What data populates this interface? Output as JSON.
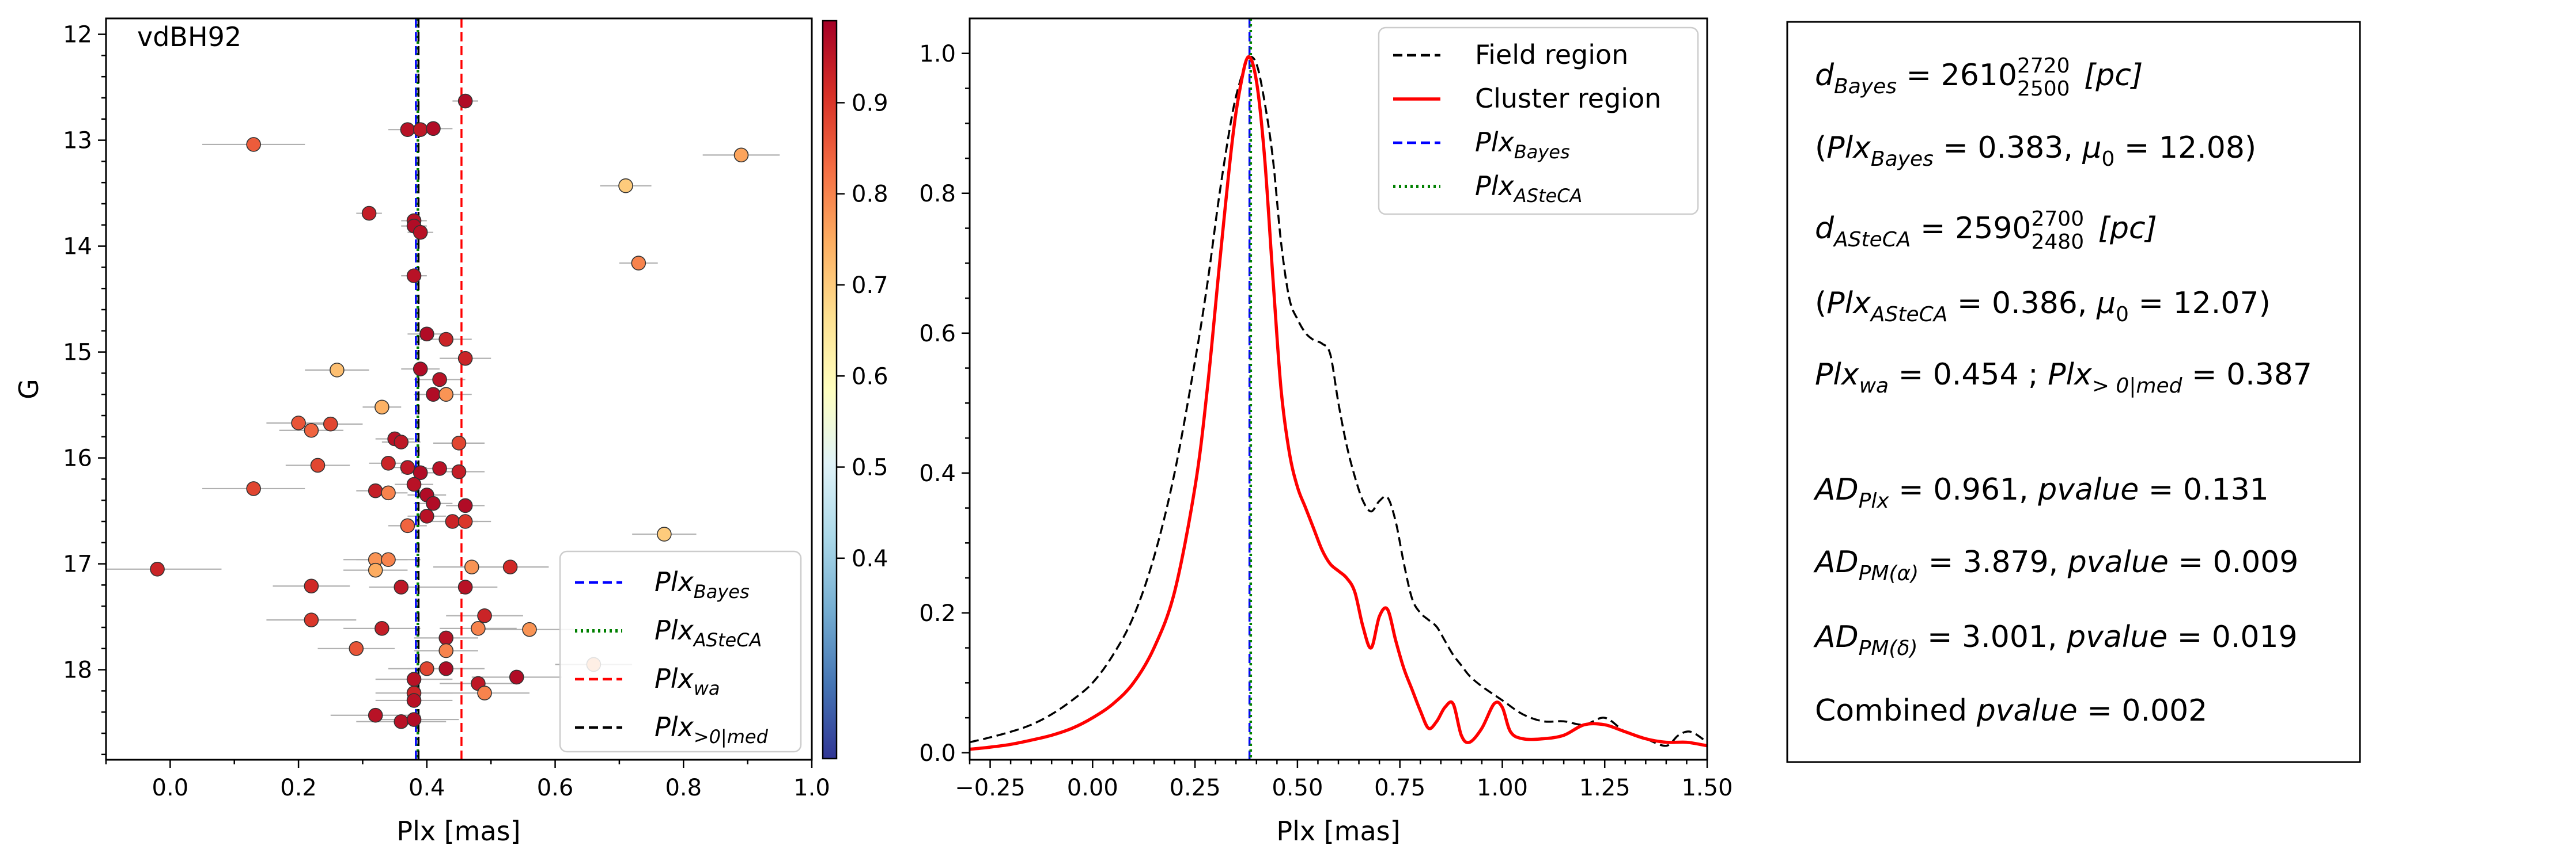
{
  "chart_data": [
    {
      "type": "scatter",
      "annotation": "vdBH92",
      "xlabel": "Plx [mas]",
      "ylabel": "G",
      "xlim": [
        -0.1,
        1.0
      ],
      "ylim": [
        18.85,
        11.85
      ],
      "y_inverted": true,
      "xticks": [
        "0.0",
        "0.2",
        "0.4",
        "0.6",
        "0.8",
        "1.0"
      ],
      "yticks": [
        "12",
        "13",
        "14",
        "15",
        "16",
        "17",
        "18"
      ],
      "colorbar": {
        "range": [
          0.18,
          0.99
        ],
        "ticks": [
          "0.4",
          "0.5",
          "0.6",
          "0.7",
          "0.8",
          "0.9"
        ],
        "colormap": "RdYlBu_r"
      },
      "vlines": [
        {
          "name": "Plx_Bayes",
          "x": 0.383,
          "color": "#0000ff",
          "style": "dashed"
        },
        {
          "name": "Plx_ASteCA",
          "x": 0.386,
          "color": "#008000",
          "style": "dotted"
        },
        {
          "name": "Plx_wa",
          "x": 0.454,
          "color": "#ff0000",
          "style": "dashed"
        },
        {
          "name": "Plx_>0|med",
          "x": 0.387,
          "color": "#000000",
          "style": "dashed"
        }
      ],
      "legend": {
        "location": "lower-right",
        "entries": [
          {
            "base": "Plx",
            "sub": "Bayes",
            "color": "#0000ff",
            "style": "dashed"
          },
          {
            "base": "Plx",
            "sub": "ASteCA",
            "color": "#008000",
            "style": "dotted"
          },
          {
            "base": "Plx",
            "sub": "wa",
            "color": "#ff0000",
            "style": "dashed"
          },
          {
            "base": "Plx",
            "sub": ">0|med",
            "color": "#000000",
            "style": "dashed"
          }
        ]
      },
      "points": [
        {
          "x": 0.46,
          "y": 12.63,
          "xerr": 0.02,
          "p": 0.97
        },
        {
          "x": 0.37,
          "y": 12.9,
          "xerr": 0.03,
          "p": 0.96
        },
        {
          "x": 0.39,
          "y": 12.9,
          "xerr": 0.03,
          "p": 0.95
        },
        {
          "x": 0.41,
          "y": 12.89,
          "xerr": 0.03,
          "p": 0.97
        },
        {
          "x": 0.13,
          "y": 13.04,
          "xerr": 0.08,
          "p": 0.85
        },
        {
          "x": 0.89,
          "y": 13.14,
          "xerr": 0.06,
          "p": 0.76
        },
        {
          "x": 0.71,
          "y": 13.43,
          "xerr": 0.04,
          "p": 0.7
        },
        {
          "x": 0.31,
          "y": 13.69,
          "xerr": 0.02,
          "p": 0.94
        },
        {
          "x": 0.38,
          "y": 13.76,
          "xerr": 0.02,
          "p": 0.96
        },
        {
          "x": 0.38,
          "y": 13.81,
          "xerr": 0.02,
          "p": 0.97
        },
        {
          "x": 0.39,
          "y": 13.87,
          "xerr": 0.02,
          "p": 0.96
        },
        {
          "x": 0.73,
          "y": 14.16,
          "xerr": 0.03,
          "p": 0.8
        },
        {
          "x": 0.38,
          "y": 14.28,
          "xerr": 0.02,
          "p": 0.96
        },
        {
          "x": 0.4,
          "y": 14.83,
          "xerr": 0.03,
          "p": 0.97
        },
        {
          "x": 0.43,
          "y": 14.88,
          "xerr": 0.04,
          "p": 0.93
        },
        {
          "x": 0.46,
          "y": 15.06,
          "xerr": 0.04,
          "p": 0.93
        },
        {
          "x": 0.26,
          "y": 15.17,
          "xerr": 0.05,
          "p": 0.72
        },
        {
          "x": 0.39,
          "y": 15.16,
          "xerr": 0.03,
          "p": 0.97
        },
        {
          "x": 0.42,
          "y": 15.26,
          "xerr": 0.04,
          "p": 0.96
        },
        {
          "x": 0.41,
          "y": 15.4,
          "xerr": 0.03,
          "p": 0.97
        },
        {
          "x": 0.43,
          "y": 15.4,
          "xerr": 0.04,
          "p": 0.78
        },
        {
          "x": 0.33,
          "y": 15.52,
          "xerr": 0.03,
          "p": 0.74
        },
        {
          "x": 0.2,
          "y": 15.67,
          "xerr": 0.05,
          "p": 0.86
        },
        {
          "x": 0.22,
          "y": 15.74,
          "xerr": 0.05,
          "p": 0.84
        },
        {
          "x": 0.25,
          "y": 15.68,
          "xerr": 0.05,
          "p": 0.88
        },
        {
          "x": 0.35,
          "y": 15.82,
          "xerr": 0.03,
          "p": 0.96
        },
        {
          "x": 0.36,
          "y": 15.85,
          "xerr": 0.03,
          "p": 0.95
        },
        {
          "x": 0.45,
          "y": 15.86,
          "xerr": 0.04,
          "p": 0.88
        },
        {
          "x": 0.23,
          "y": 16.07,
          "xerr": 0.05,
          "p": 0.88
        },
        {
          "x": 0.34,
          "y": 16.05,
          "xerr": 0.03,
          "p": 0.93
        },
        {
          "x": 0.37,
          "y": 16.09,
          "xerr": 0.03,
          "p": 0.95
        },
        {
          "x": 0.39,
          "y": 16.14,
          "xerr": 0.03,
          "p": 0.97
        },
        {
          "x": 0.42,
          "y": 16.1,
          "xerr": 0.03,
          "p": 0.96
        },
        {
          "x": 0.45,
          "y": 16.13,
          "xerr": 0.04,
          "p": 0.94
        },
        {
          "x": 0.13,
          "y": 16.29,
          "xerr": 0.08,
          "p": 0.88
        },
        {
          "x": 0.32,
          "y": 16.31,
          "xerr": 0.03,
          "p": 0.94
        },
        {
          "x": 0.34,
          "y": 16.33,
          "xerr": 0.03,
          "p": 0.8
        },
        {
          "x": 0.38,
          "y": 16.25,
          "xerr": 0.03,
          "p": 0.96
        },
        {
          "x": 0.4,
          "y": 16.35,
          "xerr": 0.03,
          "p": 0.97
        },
        {
          "x": 0.41,
          "y": 16.43,
          "xerr": 0.03,
          "p": 0.97
        },
        {
          "x": 0.46,
          "y": 16.45,
          "xerr": 0.03,
          "p": 0.97
        },
        {
          "x": 0.4,
          "y": 16.55,
          "xerr": 0.03,
          "p": 0.96
        },
        {
          "x": 0.44,
          "y": 16.6,
          "xerr": 0.04,
          "p": 0.93
        },
        {
          "x": 0.37,
          "y": 16.64,
          "xerr": 0.03,
          "p": 0.84
        },
        {
          "x": 0.46,
          "y": 16.6,
          "xerr": 0.04,
          "p": 0.9
        },
        {
          "x": 0.77,
          "y": 16.72,
          "xerr": 0.05,
          "p": 0.7
        },
        {
          "x": -0.02,
          "y": 17.05,
          "xerr": 0.1,
          "p": 0.93
        },
        {
          "x": 0.32,
          "y": 16.96,
          "xerr": 0.05,
          "p": 0.78
        },
        {
          "x": 0.34,
          "y": 16.96,
          "xerr": 0.05,
          "p": 0.8
        },
        {
          "x": 0.32,
          "y": 17.06,
          "xerr": 0.05,
          "p": 0.75
        },
        {
          "x": 0.47,
          "y": 17.03,
          "xerr": 0.06,
          "p": 0.78
        },
        {
          "x": 0.53,
          "y": 17.03,
          "xerr": 0.06,
          "p": 0.92
        },
        {
          "x": 0.22,
          "y": 17.21,
          "xerr": 0.06,
          "p": 0.92
        },
        {
          "x": 0.36,
          "y": 17.22,
          "xerr": 0.05,
          "p": 0.95
        },
        {
          "x": 0.46,
          "y": 17.22,
          "xerr": 0.05,
          "p": 0.96
        },
        {
          "x": 0.22,
          "y": 17.53,
          "xerr": 0.07,
          "p": 0.9
        },
        {
          "x": 0.33,
          "y": 17.61,
          "xerr": 0.06,
          "p": 0.94
        },
        {
          "x": 0.49,
          "y": 17.49,
          "xerr": 0.06,
          "p": 0.93
        },
        {
          "x": 0.48,
          "y": 17.61,
          "xerr": 0.06,
          "p": 0.8
        },
        {
          "x": 0.56,
          "y": 17.62,
          "xerr": 0.07,
          "p": 0.78
        },
        {
          "x": 0.29,
          "y": 17.8,
          "xerr": 0.06,
          "p": 0.86
        },
        {
          "x": 0.43,
          "y": 17.7,
          "xerr": 0.05,
          "p": 0.96
        },
        {
          "x": 0.43,
          "y": 17.82,
          "xerr": 0.05,
          "p": 0.8
        },
        {
          "x": 0.4,
          "y": 17.99,
          "xerr": 0.06,
          "p": 0.88
        },
        {
          "x": 0.43,
          "y": 17.99,
          "xerr": 0.06,
          "p": 0.97
        },
        {
          "x": 0.66,
          "y": 17.95,
          "xerr": 0.06,
          "p": 0.78
        },
        {
          "x": 0.38,
          "y": 18.09,
          "xerr": 0.06,
          "p": 0.96
        },
        {
          "x": 0.48,
          "y": 18.13,
          "xerr": 0.06,
          "p": 0.95
        },
        {
          "x": 0.54,
          "y": 18.07,
          "xerr": 0.07,
          "p": 0.97
        },
        {
          "x": 0.38,
          "y": 18.22,
          "xerr": 0.06,
          "p": 0.93
        },
        {
          "x": 0.38,
          "y": 18.29,
          "xerr": 0.06,
          "p": 0.96
        },
        {
          "x": 0.49,
          "y": 18.22,
          "xerr": 0.07,
          "p": 0.8
        },
        {
          "x": 0.32,
          "y": 18.43,
          "xerr": 0.07,
          "p": 0.96
        },
        {
          "x": 0.36,
          "y": 18.49,
          "xerr": 0.07,
          "p": 0.96
        },
        {
          "x": 0.38,
          "y": 18.47,
          "xerr": 0.07,
          "p": 0.97
        }
      ]
    },
    {
      "type": "line",
      "xlabel": "Plx [mas]",
      "xlim": [
        -0.3,
        1.5
      ],
      "ylim": [
        -0.01,
        1.05
      ],
      "xticks": [
        "−0.25",
        "0.00",
        "0.25",
        "0.50",
        "0.75",
        "1.00",
        "1.25",
        "1.50"
      ],
      "yticks": [
        "0.0",
        "0.2",
        "0.4",
        "0.6",
        "0.8",
        "1.0"
      ],
      "legend": {
        "location": "top-right",
        "entries": [
          {
            "label": "Field region",
            "color": "#000000",
            "style": "dashed"
          },
          {
            "label": "Cluster region",
            "color": "#ff0000",
            "style": "solid"
          },
          {
            "base": "Plx",
            "sub": "Bayes",
            "color": "#0000ff",
            "style": "dashed"
          },
          {
            "base": "Plx",
            "sub": "ASteCA",
            "color": "#008000",
            "style": "dotted"
          }
        ]
      },
      "vlines": [
        {
          "name": "Plx_Bayes",
          "x": 0.383,
          "color": "#0000ff",
          "style": "dashed"
        },
        {
          "name": "Plx_ASteCA",
          "x": 0.386,
          "color": "#008000",
          "style": "dotted"
        }
      ],
      "series": [
        {
          "name": "Field region",
          "color": "#000000",
          "style": "dashed",
          "x": [
            -0.3,
            -0.25,
            -0.2,
            -0.15,
            -0.1,
            -0.05,
            0.0,
            0.05,
            0.1,
            0.15,
            0.2,
            0.25,
            0.28,
            0.31,
            0.34,
            0.36,
            0.38,
            0.4,
            0.42,
            0.44,
            0.46,
            0.48,
            0.5,
            0.52,
            0.54,
            0.56,
            0.58,
            0.6,
            0.62,
            0.64,
            0.66,
            0.68,
            0.7,
            0.72,
            0.74,
            0.76,
            0.78,
            0.8,
            0.82,
            0.84,
            0.86,
            0.88,
            0.9,
            0.92,
            0.95,
            1.0,
            1.05,
            1.1,
            1.15,
            1.2,
            1.25,
            1.3,
            1.35,
            1.4,
            1.43,
            1.46,
            1.5
          ],
          "y": [
            0.015,
            0.022,
            0.03,
            0.04,
            0.055,
            0.075,
            0.1,
            0.14,
            0.195,
            0.28,
            0.4,
            0.56,
            0.67,
            0.8,
            0.91,
            0.96,
            0.993,
            0.985,
            0.93,
            0.85,
            0.73,
            0.65,
            0.62,
            0.6,
            0.59,
            0.585,
            0.57,
            0.5,
            0.44,
            0.395,
            0.36,
            0.345,
            0.36,
            0.365,
            0.33,
            0.27,
            0.22,
            0.2,
            0.19,
            0.18,
            0.16,
            0.14,
            0.125,
            0.11,
            0.095,
            0.075,
            0.055,
            0.045,
            0.045,
            0.04,
            0.05,
            0.03,
            0.02,
            0.01,
            0.025,
            0.03,
            0.015
          ]
        },
        {
          "name": "Cluster region",
          "color": "#ff0000",
          "style": "solid",
          "x": [
            -0.3,
            -0.25,
            -0.2,
            -0.15,
            -0.1,
            -0.05,
            0.0,
            0.05,
            0.1,
            0.15,
            0.2,
            0.25,
            0.28,
            0.31,
            0.34,
            0.36,
            0.38,
            0.4,
            0.42,
            0.44,
            0.46,
            0.48,
            0.5,
            0.52,
            0.54,
            0.56,
            0.58,
            0.6,
            0.62,
            0.64,
            0.66,
            0.68,
            0.7,
            0.72,
            0.74,
            0.76,
            0.78,
            0.8,
            0.82,
            0.84,
            0.86,
            0.88,
            0.9,
            0.92,
            0.95,
            0.98,
            1.0,
            1.02,
            1.05,
            1.1,
            1.15,
            1.2,
            1.25,
            1.3,
            1.35,
            1.4,
            1.45,
            1.5
          ],
          "y": [
            0.005,
            0.008,
            0.012,
            0.018,
            0.025,
            0.035,
            0.05,
            0.07,
            0.1,
            0.15,
            0.23,
            0.38,
            0.52,
            0.7,
            0.87,
            0.95,
            0.995,
            0.96,
            0.85,
            0.68,
            0.52,
            0.43,
            0.38,
            0.35,
            0.32,
            0.29,
            0.27,
            0.26,
            0.25,
            0.23,
            0.18,
            0.15,
            0.195,
            0.205,
            0.16,
            0.12,
            0.09,
            0.06,
            0.035,
            0.045,
            0.065,
            0.07,
            0.025,
            0.015,
            0.035,
            0.07,
            0.065,
            0.03,
            0.02,
            0.02,
            0.025,
            0.04,
            0.04,
            0.03,
            0.02,
            0.015,
            0.015,
            0.01
          ]
        }
      ]
    }
  ],
  "stats_box": {
    "d_bayes": {
      "base": "d",
      "sub": "Bayes",
      "eq": " = 2610",
      "sup": "2720",
      "lo": "2500",
      "unit": " [pc]"
    },
    "plx_bayes": {
      "pre": "(",
      "base": "Plx",
      "sub": "Bayes",
      "eq": " = 0.383, ",
      "mu": "μ",
      "mu_sub": "0",
      "mu_eq": " = 12.08)"
    },
    "d_asteca": {
      "base": "d",
      "sub": "ASteCA",
      "eq": " = 2590",
      "sup": "2700",
      "lo": "2480",
      "unit": " [pc]"
    },
    "plx_asteca": {
      "pre": "(",
      "base": "Plx",
      "sub": "ASteCA",
      "eq": " = 0.386, ",
      "mu": "μ",
      "mu_sub": "0",
      "mu_eq": " = 12.07)"
    },
    "plx_wa_med": {
      "base1": "Plx",
      "sub1": "wa",
      "eq1": " = 0.454 ; ",
      "base2": "Plx",
      "sub2": "> 0|med",
      "eq2": " = 0.387"
    },
    "ad_plx": {
      "base": "AD",
      "sub": "Plx",
      "eq": " = 0.961, ",
      "pv": "pvalue",
      "pv_eq": " = 0.131"
    },
    "ad_pma": {
      "base": "AD",
      "sub": "PM(α)",
      "eq": " = 3.879, ",
      "pv": "pvalue",
      "pv_eq": " = 0.009"
    },
    "ad_pmd": {
      "base": "AD",
      "sub": "PM(δ)",
      "eq": " = 3.001, ",
      "pv": "pvalue",
      "pv_eq": " = 0.019"
    },
    "combined": {
      "pre": "Combined ",
      "pv": "pvalue",
      "pv_eq": " = 0.002"
    }
  }
}
